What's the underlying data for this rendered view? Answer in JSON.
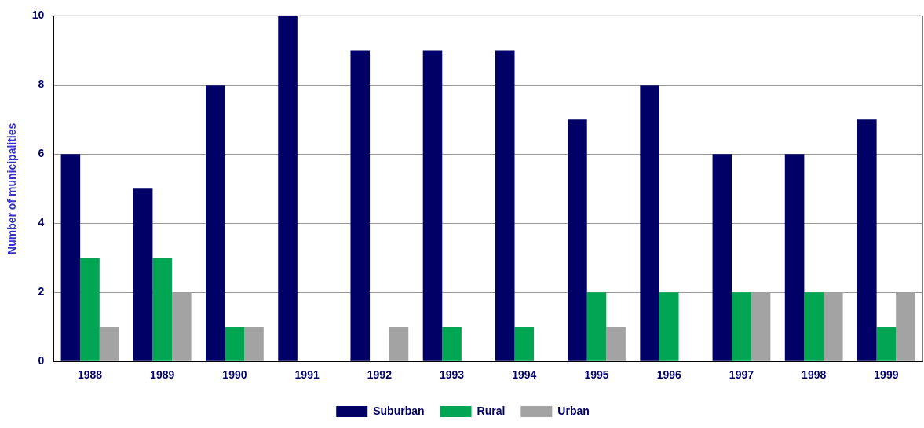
{
  "chart_data": {
    "type": "bar",
    "ylabel": "Number of municipalities",
    "categories": [
      "1988",
      "1989",
      "1990",
      "1991",
      "1992",
      "1993",
      "1994",
      "1995",
      "1996",
      "1997",
      "1998",
      "1999"
    ],
    "series": [
      {
        "name": "Suburban",
        "color": "#000066",
        "values": [
          6,
          5,
          8,
          10,
          9,
          9,
          9,
          7,
          8,
          6,
          6,
          7
        ]
      },
      {
        "name": "Rural",
        "color": "#00a651",
        "values": [
          3,
          3,
          1,
          0,
          0,
          1,
          1,
          2,
          2,
          2,
          2,
          1
        ]
      },
      {
        "name": "Urban",
        "color": "#a3a3a3",
        "values": [
          1,
          2,
          1,
          0,
          1,
          0,
          0,
          1,
          0,
          2,
          2,
          2
        ]
      }
    ],
    "ylim": [
      0,
      10
    ],
    "yticks": [
      0,
      2,
      4,
      6,
      8,
      10
    ],
    "grid": "y",
    "legend": "bottom"
  }
}
